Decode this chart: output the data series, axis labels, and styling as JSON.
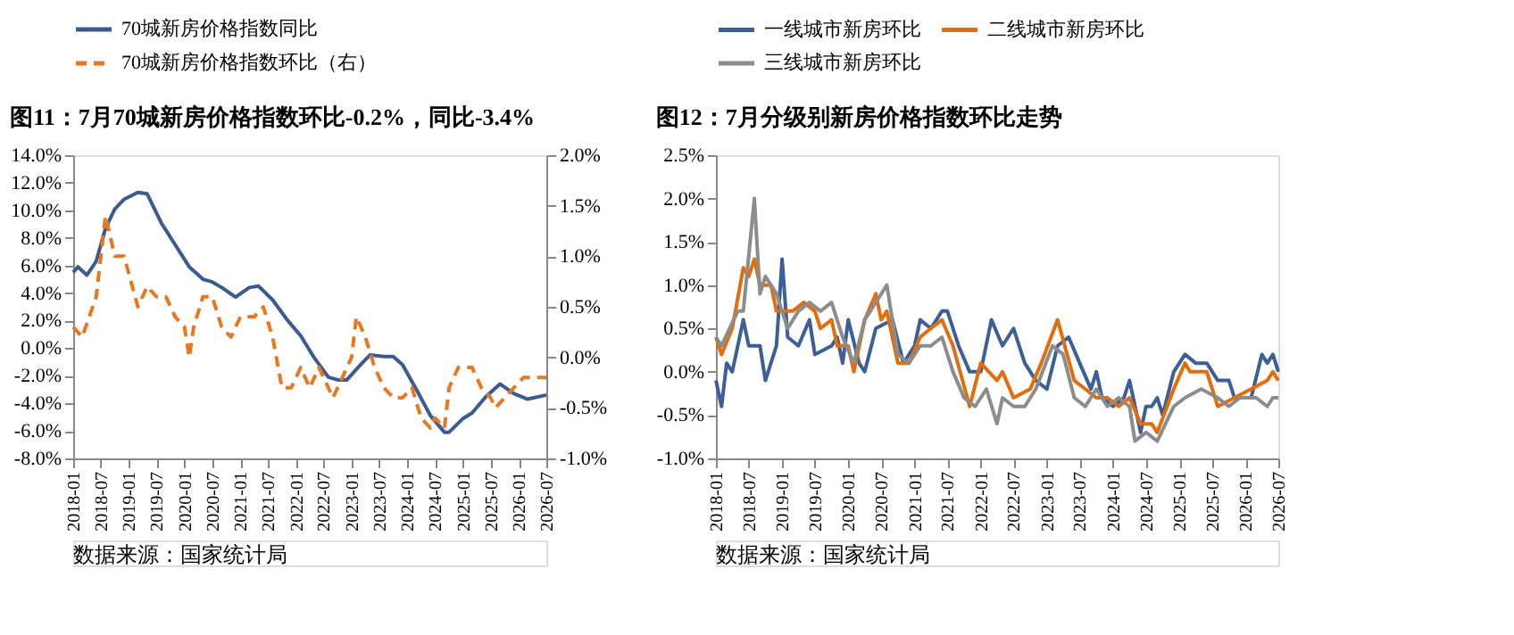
{
  "chart_data": [
    {
      "type": "line",
      "title": "图11：7月70城新房价格指数环比-0.2%，同比-3.4%",
      "legend": "top",
      "grid": false,
      "xlim": [
        "2018-01",
        "2026-07"
      ],
      "xticks": [
        "2018-01",
        "2018-07",
        "2019-01",
        "2019-07",
        "2020-01",
        "2020-07",
        "2021-01",
        "2021-07",
        "2022-01",
        "2022-07",
        "2023-01",
        "2023-07",
        "2024-01",
        "2024-07",
        "2025-01",
        "2025-07",
        "2026-01",
        "2026-07"
      ],
      "ylim": [
        -8,
        14
      ],
      "yticks": [
        {
          "value": -8,
          "label": "-8.0%"
        },
        {
          "value": -6,
          "label": "-6.0%"
        },
        {
          "value": -4,
          "label": "-4.0%"
        },
        {
          "value": -2,
          "label": "-2.0%"
        },
        {
          "value": 0,
          "label": "0.0%"
        },
        {
          "value": 2,
          "label": "2.0%"
        },
        {
          "value": 4,
          "label": "4.0%"
        },
        {
          "value": 6,
          "label": "6.0%"
        },
        {
          "value": 8,
          "label": "8.0%"
        },
        {
          "value": 10,
          "label": "10.0%"
        },
        {
          "value": 12,
          "label": "12.0%"
        },
        {
          "value": 14,
          "label": "14.0%"
        }
      ],
      "y2lim": [
        -1,
        2
      ],
      "y2ticks": [
        {
          "value": -1,
          "label": "-1.0%"
        },
        {
          "value": -0.5,
          "label": "-0.5%"
        },
        {
          "value": 0,
          "label": "0.0%"
        },
        {
          "value": 0.5,
          "label": "0.5%"
        },
        {
          "value": 1,
          "label": "1.0%"
        },
        {
          "value": 1.5,
          "label": "1.5%"
        },
        {
          "value": 2,
          "label": "2.0%"
        }
      ],
      "series": [
        {
          "name": "70城新房价格指数同比",
          "color": "#3b5a8f",
          "line_style": "solid",
          "x": [
            "2018-01",
            "2018-02",
            "2018-04",
            "2018-06",
            "2018-08",
            "2018-10",
            "2018-12",
            "2019-03",
            "2019-05",
            "2019-08",
            "2019-11",
            "2020-02",
            "2020-05",
            "2020-07",
            "2020-09",
            "2020-12",
            "2021-03",
            "2021-05",
            "2021-08",
            "2021-11",
            "2022-02",
            "2022-05",
            "2022-08",
            "2022-10",
            "2022-12",
            "2023-03",
            "2023-05",
            "2023-08",
            "2023-10",
            "2023-12",
            "2024-03",
            "2024-06",
            "2024-09",
            "2024-10",
            "2025-01",
            "2025-03",
            "2025-06",
            "2025-09",
            "2025-12",
            "2026-03",
            "2026-07"
          ],
          "values": [
            5.5,
            5.9,
            5.3,
            6.3,
            8.7,
            10.1,
            10.8,
            11.3,
            11.2,
            9.1,
            7.5,
            5.9,
            5.0,
            4.8,
            4.4,
            3.7,
            4.4,
            4.5,
            3.5,
            2.1,
            0.9,
            -0.7,
            -2.1,
            -2.3,
            -2.3,
            -1.2,
            -0.5,
            -0.6,
            -0.6,
            -1.2,
            -3.0,
            -4.9,
            -6.1,
            -6.1,
            -5.1,
            -4.7,
            -3.5,
            -2.6,
            -3.3,
            -3.7,
            -3.4
          ]
        },
        {
          "name": "70城新房价格指数环比（右）",
          "color": "#e87722",
          "line_style": "dashed",
          "axis": "y2",
          "x": [
            "2018-01",
            "2018-03",
            "2018-06",
            "2018-08",
            "2018-10",
            "2018-12",
            "2019-03",
            "2019-05",
            "2019-07",
            "2019-09",
            "2019-11",
            "2020-01",
            "2020-02",
            "2020-03",
            "2020-05",
            "2020-07",
            "2020-09",
            "2020-11",
            "2021-01",
            "2021-04",
            "2021-06",
            "2021-08",
            "2021-10",
            "2021-12",
            "2022-02",
            "2022-04",
            "2022-06",
            "2022-08",
            "2022-09",
            "2022-11",
            "2023-01",
            "2023-02",
            "2023-04",
            "2023-06",
            "2023-08",
            "2023-10",
            "2023-12",
            "2024-02",
            "2024-04",
            "2024-06",
            "2024-07",
            "2024-09",
            "2024-10",
            "2024-12",
            "2025-03",
            "2025-05",
            "2025-07",
            "2025-08",
            "2025-10",
            "2025-12",
            "2026-02",
            "2026-07"
          ],
          "values": [
            0.3,
            0.2,
            0.6,
            1.4,
            1.0,
            1.0,
            0.5,
            0.7,
            0.6,
            0.6,
            0.4,
            0.3,
            0.0,
            0.3,
            0.6,
            0.6,
            0.3,
            0.2,
            0.4,
            0.4,
            0.5,
            0.2,
            -0.3,
            -0.3,
            -0.1,
            -0.3,
            -0.1,
            -0.3,
            -0.4,
            -0.2,
            0.0,
            0.4,
            0.2,
            -0.1,
            -0.3,
            -0.4,
            -0.4,
            -0.3,
            -0.6,
            -0.7,
            -0.6,
            -0.7,
            -0.3,
            -0.1,
            -0.1,
            -0.3,
            -0.4,
            -0.5,
            -0.4,
            -0.3,
            -0.2,
            -0.2
          ]
        }
      ],
      "annotations": [
        "数据来源：国家统计局"
      ]
    },
    {
      "type": "line",
      "title": "图12：7月分级别新房价格指数环比走势",
      "legend": "top",
      "grid": false,
      "xlim": [
        "2018-01",
        "2026-07"
      ],
      "xticks": [
        "2018-01",
        "2018-07",
        "2019-01",
        "2019-07",
        "2020-01",
        "2020-07",
        "2021-01",
        "2021-07",
        "2022-01",
        "2022-07",
        "2023-01",
        "2023-07",
        "2024-01",
        "2024-07",
        "2025-01",
        "2025-07",
        "2026-01",
        "2026-07"
      ],
      "ylim": [
        -1,
        2.5
      ],
      "yticks": [
        {
          "value": -1,
          "label": "-1.0%"
        },
        {
          "value": -0.5,
          "label": "-0.5%"
        },
        {
          "value": 0,
          "label": "0.0%"
        },
        {
          "value": 0.5,
          "label": "0.5%"
        },
        {
          "value": 1,
          "label": "1.0%"
        },
        {
          "value": 1.5,
          "label": "1.5%"
        },
        {
          "value": 2,
          "label": "2.0%"
        },
        {
          "value": 2.5,
          "label": "2.5%"
        }
      ],
      "series": [
        {
          "name": "一线城市新房环比",
          "color": "#3d5f99",
          "x": [
            "2018-01",
            "2018-02",
            "2018-03",
            "2018-04",
            "2018-06",
            "2018-07",
            "2018-09",
            "2018-10",
            "2018-12",
            "2019-01",
            "2019-02",
            "2019-04",
            "2019-06",
            "2019-07",
            "2019-10",
            "2019-11",
            "2019-12",
            "2020-01",
            "2020-03",
            "2020-04",
            "2020-06",
            "2020-09",
            "2020-11",
            "2021-01",
            "2021-02",
            "2021-04",
            "2021-06",
            "2021-07",
            "2021-09",
            "2021-11",
            "2022-01",
            "2022-03",
            "2022-05",
            "2022-07",
            "2022-09",
            "2022-11",
            "2023-01",
            "2023-03",
            "2023-05",
            "2023-07",
            "2023-09",
            "2023-10",
            "2023-11",
            "2024-01",
            "2024-03",
            "2024-04",
            "2024-06",
            "2024-07",
            "2024-08",
            "2024-09",
            "2024-10",
            "2024-12",
            "2025-02",
            "2025-04",
            "2025-06",
            "2025-08",
            "2025-10",
            "2025-11",
            "2026-02",
            "2026-04",
            "2026-05",
            "2026-06",
            "2026-07"
          ],
          "values": [
            -0.1,
            -0.4,
            0.1,
            0.0,
            0.6,
            0.3,
            0.3,
            -0.1,
            0.3,
            1.3,
            0.4,
            0.3,
            0.6,
            0.2,
            0.3,
            0.4,
            0.1,
            0.6,
            0.1,
            0.0,
            0.5,
            0.6,
            0.1,
            0.3,
            0.6,
            0.5,
            0.7,
            0.7,
            0.3,
            0.0,
            0.0,
            0.6,
            0.3,
            0.5,
            0.1,
            -0.1,
            -0.2,
            0.3,
            0.4,
            0.1,
            -0.2,
            0.0,
            -0.3,
            -0.4,
            -0.3,
            -0.1,
            -0.7,
            -0.4,
            -0.4,
            -0.3,
            -0.5,
            0.0,
            0.2,
            0.1,
            0.1,
            -0.1,
            -0.1,
            -0.3,
            -0.3,
            0.2,
            0.1,
            0.2,
            0.0
          ]
        },
        {
          "name": "二线城市新房环比",
          "color": "#e46c0a",
          "x": [
            "2018-01",
            "2018-02",
            "2018-04",
            "2018-06",
            "2018-07",
            "2018-08",
            "2018-09",
            "2018-11",
            "2018-12",
            "2019-03",
            "2019-05",
            "2019-07",
            "2019-08",
            "2019-10",
            "2019-11",
            "2020-01",
            "2020-02",
            "2020-04",
            "2020-06",
            "2020-07",
            "2020-08",
            "2020-10",
            "2020-12",
            "2021-02",
            "2021-04",
            "2021-06",
            "2021-08",
            "2021-11",
            "2022-01",
            "2022-04",
            "2022-05",
            "2022-07",
            "2022-10",
            "2022-12",
            "2023-03",
            "2023-06",
            "2023-08",
            "2023-10",
            "2023-12",
            "2024-02",
            "2024-04",
            "2024-06",
            "2024-08",
            "2024-09",
            "2024-12",
            "2025-02",
            "2025-03",
            "2025-06",
            "2025-08",
            "2025-11",
            "2026-02",
            "2026-05",
            "2026-06",
            "2026-07"
          ],
          "values": [
            0.4,
            0.2,
            0.5,
            1.2,
            1.1,
            1.3,
            1.0,
            1.0,
            0.7,
            0.7,
            0.8,
            0.7,
            0.5,
            0.6,
            0.3,
            0.3,
            0.0,
            0.6,
            0.9,
            0.6,
            0.7,
            0.1,
            0.1,
            0.4,
            0.5,
            0.6,
            0.3,
            -0.4,
            0.1,
            -0.1,
            0.0,
            -0.3,
            -0.2,
            0.1,
            0.6,
            -0.1,
            -0.2,
            -0.3,
            -0.3,
            -0.4,
            -0.3,
            -0.6,
            -0.6,
            -0.7,
            -0.2,
            0.1,
            0.0,
            0.0,
            -0.4,
            -0.3,
            -0.2,
            -0.1,
            0.0,
            -0.1
          ]
        },
        {
          "name": "三线城市新房环比",
          "color": "#8c8c8c",
          "x": [
            "2018-01",
            "2018-02",
            "2018-05",
            "2018-06",
            "2018-08",
            "2018-09",
            "2018-10",
            "2018-12",
            "2019-02",
            "2019-04",
            "2019-06",
            "2019-08",
            "2019-10",
            "2019-12",
            "2020-02",
            "2020-04",
            "2020-06",
            "2020-08",
            "2020-10",
            "2020-12",
            "2021-02",
            "2021-04",
            "2021-06",
            "2021-08",
            "2021-10",
            "2021-12",
            "2022-02",
            "2022-04",
            "2022-05",
            "2022-07",
            "2022-09",
            "2022-11",
            "2023-02",
            "2023-04",
            "2023-06",
            "2023-08",
            "2023-10",
            "2023-12",
            "2024-02",
            "2024-04",
            "2024-05",
            "2024-07",
            "2024-09",
            "2024-12",
            "2025-02",
            "2025-05",
            "2025-08",
            "2025-10",
            "2025-12",
            "2026-03",
            "2026-05",
            "2026-06",
            "2026-07"
          ],
          "values": [
            0.4,
            0.3,
            0.7,
            0.7,
            2.0,
            0.9,
            1.1,
            0.9,
            0.5,
            0.7,
            0.8,
            0.7,
            0.8,
            0.4,
            0.1,
            0.6,
            0.8,
            1.0,
            0.2,
            0.1,
            0.3,
            0.3,
            0.4,
            0.0,
            -0.3,
            -0.4,
            -0.2,
            -0.6,
            -0.3,
            -0.4,
            -0.4,
            -0.2,
            0.3,
            0.2,
            -0.3,
            -0.4,
            -0.2,
            -0.4,
            -0.3,
            -0.4,
            -0.8,
            -0.7,
            -0.8,
            -0.4,
            -0.3,
            -0.2,
            -0.3,
            -0.4,
            -0.3,
            -0.3,
            -0.4,
            -0.3,
            -0.3
          ]
        }
      ],
      "annotations": [
        "数据来源：国家统计局"
      ]
    }
  ]
}
